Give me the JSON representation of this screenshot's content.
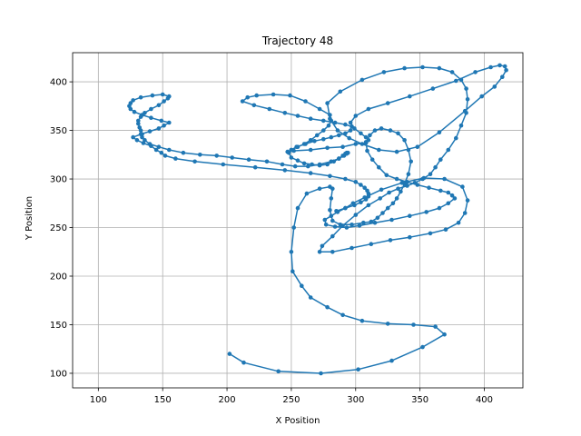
{
  "chart_data": {
    "type": "line",
    "title": "Trajectory 48",
    "xlabel": "X Position",
    "ylabel": "Y Position",
    "xlim": [
      80,
      430
    ],
    "ylim": [
      85,
      430
    ],
    "xticks": [
      100,
      150,
      200,
      250,
      300,
      350,
      400
    ],
    "yticks": [
      100,
      150,
      200,
      250,
      300,
      350,
      400
    ],
    "grid": true,
    "series": [
      {
        "color": "#1f77b4",
        "marker": "circle",
        "x": [
          202,
          213,
          240,
          273,
          302,
          328,
          352,
          369,
          362,
          345,
          325,
          305,
          290,
          278,
          265,
          258,
          251,
          250,
          252,
          255,
          262,
          272,
          280,
          282,
          281,
          280,
          282,
          288,
          297,
          306,
          312,
          317,
          321,
          325,
          329,
          332,
          335,
          338,
          341,
          343,
          341,
          338,
          333,
          327,
          320,
          315,
          311,
          308,
          309,
          313,
          318,
          324,
          332,
          340,
          348,
          357,
          366,
          372,
          375,
          377,
          372,
          365,
          355,
          342,
          328,
          315,
          303,
          293,
          284,
          277,
          276,
          281,
          286,
          292,
          298,
          307,
          320,
          336,
          353,
          369,
          383,
          387,
          385,
          380,
          370,
          358,
          342,
          327,
          312,
          297,
          282,
          272,
          274,
          282,
          290,
          300,
          310,
          319,
          326,
          333,
          340,
          346,
          352,
          358,
          362,
          366,
          372,
          378,
          382,
          386,
          387,
          386,
          382,
          375,
          365,
          352,
          338,
          322,
          305,
          288,
          278,
          280,
          286,
          295,
          305,
          318,
          332,
          348,
          365,
          385,
          398,
          408,
          414,
          417,
          416,
          412,
          405,
          393,
          378,
          360,
          342,
          325,
          310,
          300,
          296,
          299,
          304,
          308,
          310,
          308,
          300,
          290,
          278,
          265,
          252,
          247,
          250,
          255,
          260,
          265,
          270,
          275,
          279,
          281,
          280,
          272,
          261,
          249,
          236,
          223,
          216,
          212,
          221,
          233,
          245,
          255,
          265,
          275,
          284,
          292,
          297,
          296,
          292,
          287,
          281,
          275,
          268,
          261,
          254,
          250,
          248,
          250,
          255,
          260,
          266,
          272,
          278,
          283,
          287,
          290,
          292,
          293,
          294,
          293,
          291,
          287,
          281,
          272,
          263,
          253,
          243,
          231,
          217,
          204,
          192,
          179,
          166,
          155,
          147,
          140,
          136,
          134,
          134,
          133,
          132,
          131,
          131,
          133,
          136,
          141,
          147,
          151,
          154,
          155,
          150,
          142,
          133,
          127,
          125,
          124,
          125,
          128,
          134,
          141,
          149,
          155,
          151,
          147,
          140,
          133,
          127,
          130,
          135,
          141,
          145,
          149,
          152,
          160,
          175,
          197,
          222,
          245,
          265,
          280,
          292,
          300,
          304,
          307,
          309,
          310,
          310,
          308,
          304,
          299,
          292,
          285
        ],
        "y": [
          120,
          111,
          102,
          100,
          104,
          113,
          127,
          140,
          148,
          150,
          151,
          154,
          160,
          168,
          178,
          190,
          205,
          225,
          250,
          270,
          285,
          290,
          292,
          290,
          280,
          268,
          257,
          253,
          253,
          255,
          256,
          260,
          265,
          270,
          275,
          280,
          287,
          295,
          305,
          318,
          330,
          340,
          347,
          350,
          352,
          350,
          345,
          338,
          329,
          320,
          312,
          304,
          300,
          297,
          294,
          291,
          288,
          286,
          283,
          280,
          275,
          270,
          266,
          262,
          258,
          255,
          252,
          250,
          251,
          253,
          258,
          262,
          266,
          270,
          275,
          281,
          289,
          296,
          301,
          300,
          292,
          278,
          265,
          255,
          248,
          244,
          240,
          237,
          233,
          229,
          225,
          225,
          231,
          241,
          252,
          263,
          273,
          280,
          286,
          290,
          293,
          296,
          300,
          305,
          312,
          320,
          330,
          342,
          355,
          368,
          382,
          393,
          402,
          410,
          414,
          415,
          414,
          410,
          402,
          390,
          378,
          362,
          350,
          342,
          336,
          330,
          328,
          333,
          348,
          370,
          385,
          395,
          405,
          412,
          416,
          417,
          415,
          410,
          401,
          393,
          385,
          378,
          372,
          365,
          358,
          352,
          347,
          343,
          340,
          337,
          336,
          333,
          332,
          330,
          329,
          328,
          330,
          333,
          336,
          340,
          345,
          350,
          355,
          360,
          366,
          372,
          380,
          386,
          387,
          386,
          384,
          380,
          376,
          372,
          368,
          365,
          362,
          360,
          358,
          356,
          354,
          350,
          347,
          345,
          343,
          341,
          339,
          336,
          333,
          330,
          327,
          322,
          319,
          316,
          315,
          314,
          315,
          318,
          321,
          324,
          326,
          327,
          327,
          326,
          324,
          321,
          318,
          315,
          313,
          313,
          315,
          318,
          320,
          322,
          324,
          325,
          327,
          330,
          333,
          336,
          340,
          343,
          346,
          350,
          353,
          357,
          360,
          364,
          368,
          372,
          376,
          380,
          383,
          385,
          387,
          386,
          384,
          381,
          378,
          375,
          372,
          369,
          366,
          363,
          360,
          358,
          355,
          352,
          349,
          346,
          343,
          340,
          337,
          334,
          330,
          327,
          324,
          321,
          318,
          315,
          312,
          309,
          306,
          303,
          300,
          297,
          294,
          291,
          288,
          285,
          282,
          279,
          276,
          273,
          270,
          267
        ]
      }
    ]
  }
}
